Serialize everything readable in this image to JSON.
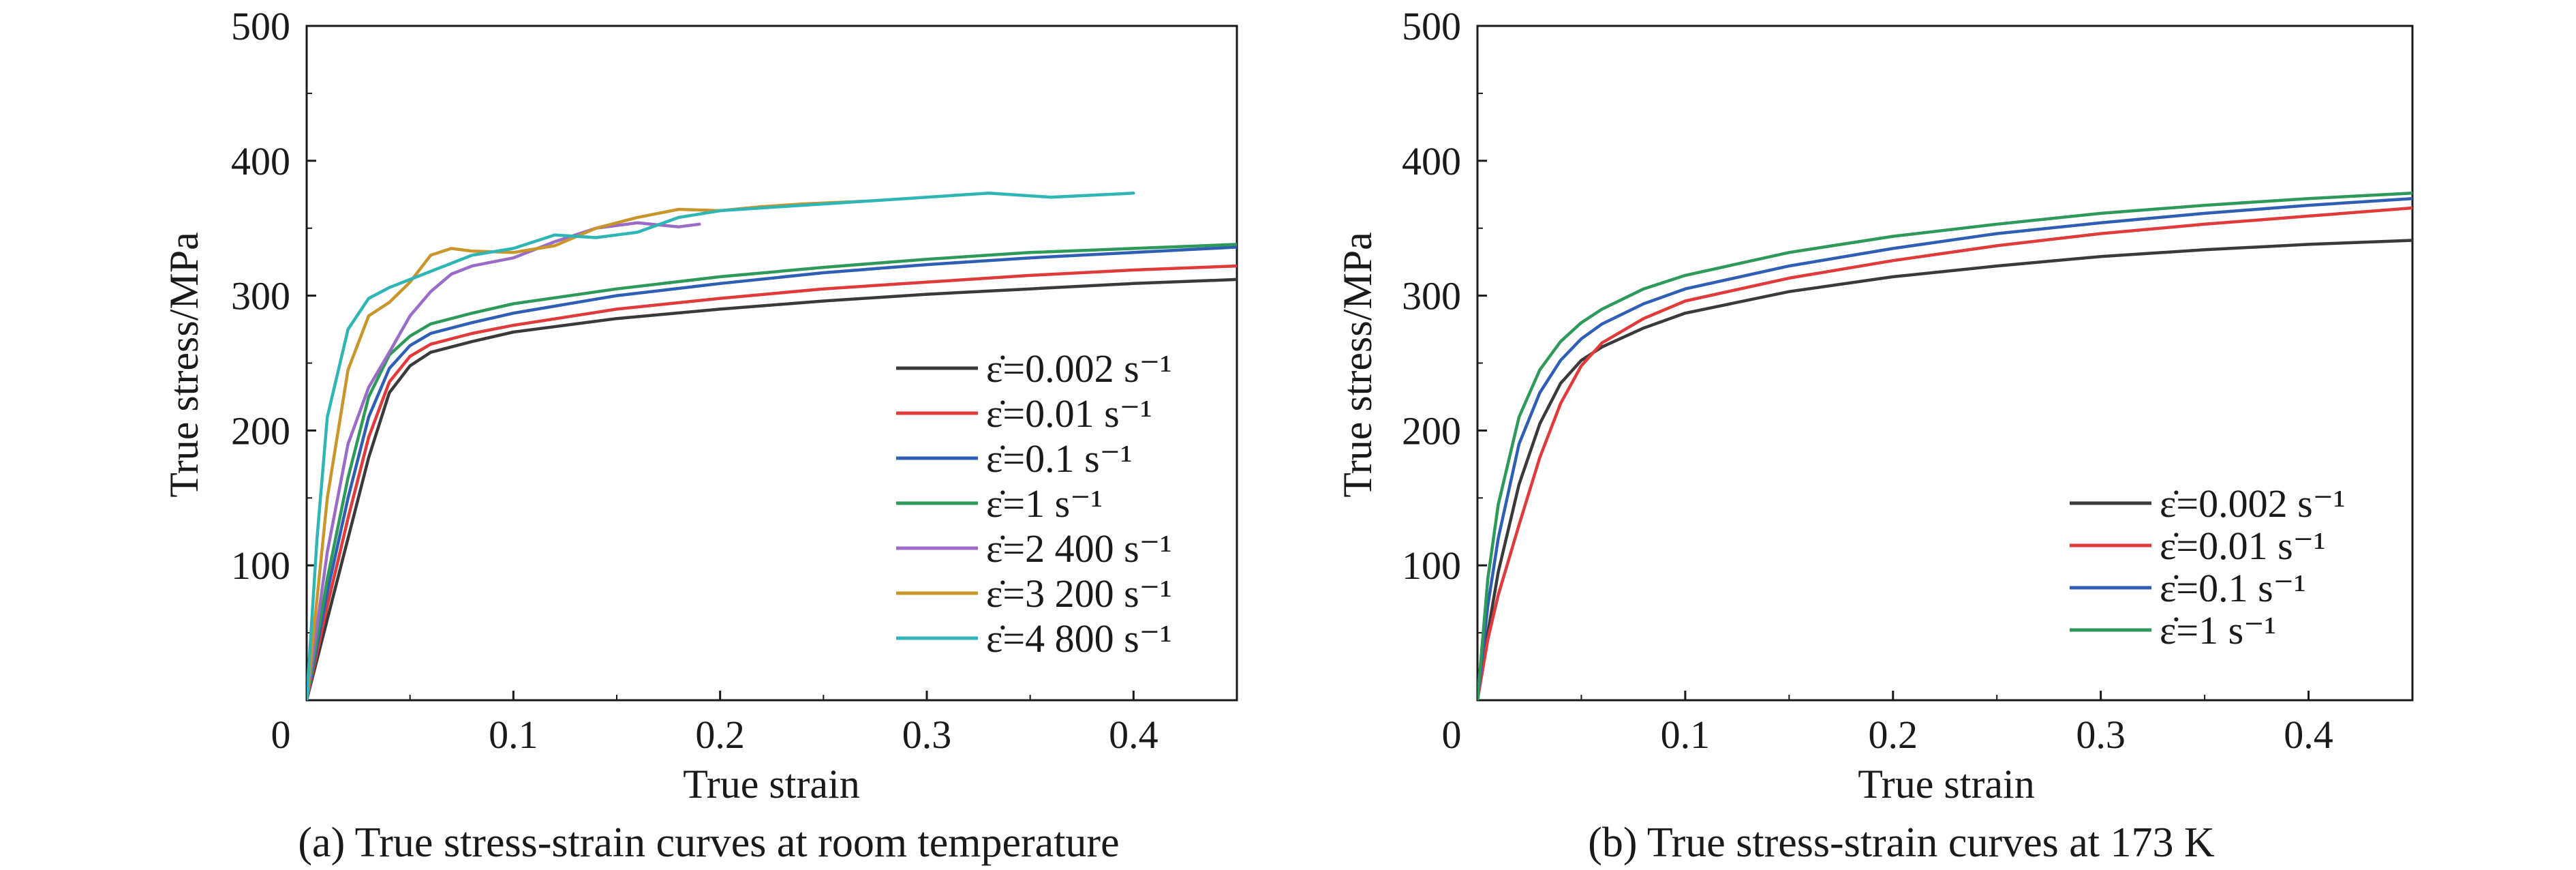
{
  "chart_data": [
    {
      "type": "line",
      "caption": "(a) True stress-strain curves at room temperature",
      "xlabel": "True strain",
      "ylabel": "True stress/MPa",
      "xlim": [
        0,
        0.45
      ],
      "ylim": [
        0,
        500
      ],
      "xticks": [
        "0",
        "0.1",
        "0.2",
        "0.3",
        "0.4"
      ],
      "yticks": [
        "100",
        "200",
        "300",
        "400",
        "500"
      ],
      "legend_position": "bottom-right",
      "series": [
        {
          "name": "ε̇=0.002 s⁻¹",
          "color": "#3a3a3a",
          "x": [
            0.0,
            0.01,
            0.02,
            0.03,
            0.04,
            0.05,
            0.06,
            0.08,
            0.1,
            0.15,
            0.2,
            0.25,
            0.3,
            0.35,
            0.4,
            0.45
          ],
          "y": [
            0,
            60,
            120,
            180,
            228,
            248,
            258,
            266,
            273,
            283,
            290,
            296,
            301,
            305,
            309,
            312
          ]
        },
        {
          "name": "ε̇=0.01 s⁻¹",
          "color": "#e03a3a",
          "x": [
            0.0,
            0.01,
            0.02,
            0.03,
            0.04,
            0.05,
            0.06,
            0.08,
            0.1,
            0.15,
            0.2,
            0.25,
            0.3,
            0.35,
            0.4,
            0.45
          ],
          "y": [
            0,
            70,
            135,
            195,
            236,
            255,
            264,
            272,
            278,
            290,
            298,
            305,
            310,
            315,
            319,
            322
          ]
        },
        {
          "name": "ε̇=0.1 s⁻¹",
          "color": "#2f5fb5",
          "x": [
            0.0,
            0.01,
            0.02,
            0.03,
            0.04,
            0.05,
            0.06,
            0.08,
            0.1,
            0.15,
            0.2,
            0.25,
            0.3,
            0.35,
            0.4,
            0.45
          ],
          "y": [
            0,
            80,
            150,
            210,
            246,
            263,
            272,
            280,
            287,
            300,
            309,
            317,
            323,
            328,
            332,
            336
          ]
        },
        {
          "name": "ε̇=1 s⁻¹",
          "color": "#2e9a5a",
          "x": [
            0.0,
            0.01,
            0.02,
            0.03,
            0.04,
            0.05,
            0.06,
            0.08,
            0.1,
            0.15,
            0.2,
            0.25,
            0.3,
            0.35,
            0.4,
            0.45
          ],
          "y": [
            0,
            90,
            165,
            225,
            256,
            270,
            279,
            287,
            294,
            305,
            314,
            321,
            327,
            332,
            335,
            338
          ]
        },
        {
          "name": "ε̇=2 400 s⁻¹",
          "color": "#9a6cc8",
          "x": [
            0.0,
            0.01,
            0.02,
            0.03,
            0.04,
            0.05,
            0.06,
            0.07,
            0.08,
            0.1,
            0.12,
            0.14,
            0.16,
            0.18,
            0.19
          ],
          "y": [
            0,
            110,
            190,
            232,
            258,
            285,
            303,
            316,
            322,
            328,
            340,
            350,
            354,
            351,
            353
          ]
        },
        {
          "name": "ε̇=3 200 s⁻¹",
          "color": "#c8962a",
          "x": [
            0.0,
            0.01,
            0.02,
            0.03,
            0.04,
            0.05,
            0.06,
            0.07,
            0.08,
            0.1,
            0.12,
            0.14,
            0.16,
            0.18,
            0.2,
            0.22,
            0.24,
            0.27
          ],
          "y": [
            0,
            150,
            245,
            285,
            295,
            310,
            330,
            335,
            333,
            332,
            337,
            350,
            358,
            364,
            363,
            366,
            368,
            370
          ]
        },
        {
          "name": "ε̇=4 800 s⁻¹",
          "color": "#2fb5b5",
          "x": [
            0.0,
            0.005,
            0.01,
            0.02,
            0.03,
            0.04,
            0.05,
            0.06,
            0.08,
            0.1,
            0.12,
            0.14,
            0.16,
            0.18,
            0.2,
            0.25,
            0.3,
            0.33,
            0.36,
            0.4
          ],
          "y": [
            0,
            120,
            210,
            275,
            298,
            306,
            312,
            318,
            330,
            335,
            345,
            343,
            347,
            358,
            363,
            368,
            373,
            376,
            373,
            376
          ]
        }
      ]
    },
    {
      "type": "line",
      "caption": "(b) True stress-strain curves at 173 K",
      "xlabel": "True strain",
      "ylabel": "True stress/MPa",
      "xlim": [
        0,
        0.45
      ],
      "ylim": [
        0,
        500
      ],
      "xticks": [
        "0",
        "0.1",
        "0.2",
        "0.3",
        "0.4"
      ],
      "yticks": [
        "100",
        "200",
        "300",
        "400",
        "500"
      ],
      "legend_position": "bottom-right",
      "series": [
        {
          "name": "ε̇=0.002 s⁻¹",
          "color": "#3a3a3a",
          "x": [
            0.0,
            0.005,
            0.01,
            0.02,
            0.03,
            0.04,
            0.05,
            0.06,
            0.08,
            0.1,
            0.15,
            0.2,
            0.25,
            0.3,
            0.35,
            0.4,
            0.45
          ],
          "y": [
            0,
            50,
            95,
            160,
            205,
            235,
            252,
            262,
            276,
            287,
            303,
            314,
            322,
            329,
            334,
            338,
            341
          ]
        },
        {
          "name": "ε̇=0.01 s⁻¹",
          "color": "#e03a3a",
          "x": [
            0.0,
            0.005,
            0.01,
            0.02,
            0.03,
            0.04,
            0.05,
            0.06,
            0.08,
            0.1,
            0.15,
            0.2,
            0.25,
            0.3,
            0.35,
            0.4,
            0.45
          ],
          "y": [
            0,
            45,
            78,
            130,
            180,
            220,
            248,
            265,
            283,
            296,
            313,
            326,
            337,
            346,
            353,
            359,
            365
          ]
        },
        {
          "name": "ε̇=0.1 s⁻¹",
          "color": "#2f5fb5",
          "x": [
            0.0,
            0.005,
            0.01,
            0.02,
            0.03,
            0.04,
            0.05,
            0.06,
            0.08,
            0.1,
            0.15,
            0.2,
            0.25,
            0.3,
            0.35,
            0.4,
            0.45
          ],
          "y": [
            0,
            70,
            120,
            190,
            228,
            252,
            268,
            279,
            294,
            305,
            322,
            335,
            346,
            354,
            361,
            367,
            372
          ]
        },
        {
          "name": "ε̇=1 s⁻¹",
          "color": "#2e9a5a",
          "x": [
            0.0,
            0.005,
            0.01,
            0.02,
            0.03,
            0.04,
            0.05,
            0.06,
            0.08,
            0.1,
            0.15,
            0.2,
            0.25,
            0.3,
            0.35,
            0.4,
            0.45
          ],
          "y": [
            0,
            90,
            145,
            210,
            245,
            266,
            280,
            290,
            305,
            315,
            332,
            344,
            353,
            361,
            367,
            372,
            376
          ]
        }
      ]
    }
  ]
}
